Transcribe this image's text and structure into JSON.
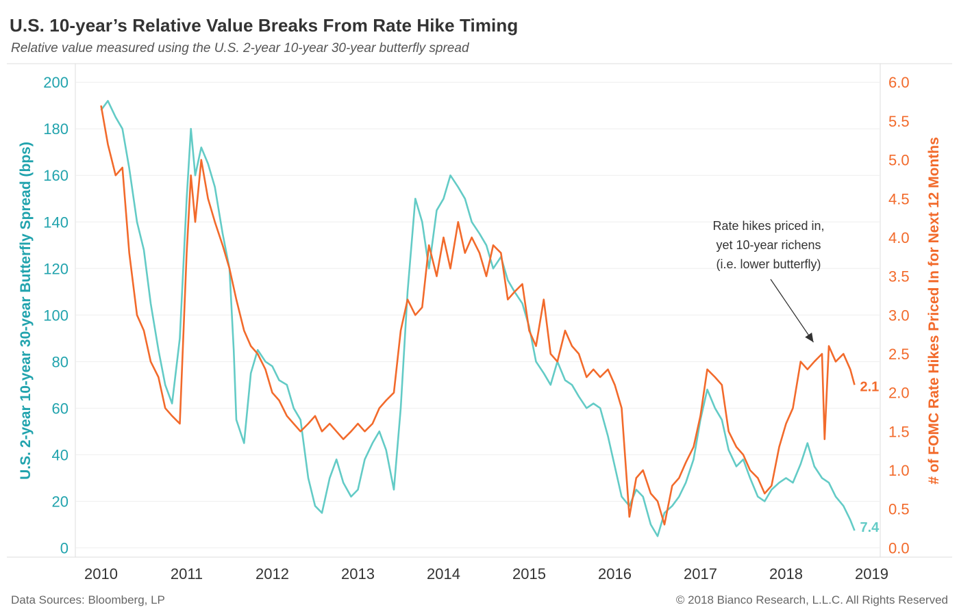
{
  "header": {
    "title": "U.S. 10-year’s Relative Value Breaks From Rate Hike Timing",
    "subtitle": "Relative value measured using the U.S. 2-year 10-year 30-year butterfly spread"
  },
  "footer": {
    "source": "Data Sources: Bloomberg, LP",
    "copyright": "© 2018 Bianco Research, L.L.C. All Rights Reserved"
  },
  "chart_data": {
    "type": "line",
    "title": "U.S. 10-year’s Relative Value Breaks From Rate Hike Timing",
    "subtitle": "Relative value measured using the U.S. 2-year 10-year 30-year butterfly spread",
    "xlabel": "",
    "ylabel": "U.S. 2-year 10-year 30-year Butterfly Spread (bps)",
    "y2label": "# of FOMC Rate Hikes Priced In for Next 12 Months",
    "xlim": [
      2009.7,
      2019.1
    ],
    "ylim": [
      -4,
      208
    ],
    "y2lim": [
      -0.12,
      6.24
    ],
    "x_ticks": [
      "2010",
      "2011",
      "2012",
      "2013",
      "2014",
      "2015",
      "2016",
      "2017",
      "2018",
      "2019"
    ],
    "y_ticks": [
      "0",
      "20",
      "40",
      "60",
      "80",
      "100",
      "120",
      "140",
      "160",
      "180",
      "200"
    ],
    "y2_ticks": [
      "0.0",
      "0.5",
      "1.0",
      "1.5",
      "2.0",
      "2.5",
      "3.0",
      "3.5",
      "4.0",
      "4.5",
      "5.0",
      "5.5",
      "6.0"
    ],
    "grid": true,
    "legend": "none",
    "series": [
      {
        "axis": "left",
        "color": "#63cbc6",
        "last_label": "7.4",
        "x": [
          2010.0,
          2010.08,
          2010.17,
          2010.25,
          2010.33,
          2010.42,
          2010.5,
          2010.58,
          2010.67,
          2010.75,
          2010.83,
          2010.92,
          2011.0,
          2011.05,
          2011.1,
          2011.17,
          2011.25,
          2011.33,
          2011.42,
          2011.5,
          2011.55,
          2011.58,
          2011.67,
          2011.75,
          2011.83,
          2011.92,
          2012.0,
          2012.08,
          2012.17,
          2012.25,
          2012.33,
          2012.42,
          2012.5,
          2012.58,
          2012.67,
          2012.75,
          2012.83,
          2012.92,
          2013.0,
          2013.08,
          2013.17,
          2013.25,
          2013.33,
          2013.42,
          2013.5,
          2013.58,
          2013.67,
          2013.75,
          2013.83,
          2013.92,
          2014.0,
          2014.08,
          2014.17,
          2014.25,
          2014.33,
          2014.42,
          2014.5,
          2014.58,
          2014.67,
          2014.75,
          2014.83,
          2014.92,
          2015.0,
          2015.08,
          2015.17,
          2015.25,
          2015.33,
          2015.42,
          2015.5,
          2015.58,
          2015.67,
          2015.75,
          2015.83,
          2015.92,
          2016.0,
          2016.08,
          2016.17,
          2016.25,
          2016.33,
          2016.42,
          2016.5,
          2016.58,
          2016.67,
          2016.75,
          2016.83,
          2016.92,
          2017.0,
          2017.08,
          2017.17,
          2017.25,
          2017.33,
          2017.42,
          2017.5,
          2017.58,
          2017.67,
          2017.75,
          2017.83,
          2017.92,
          2018.0,
          2018.08,
          2018.17,
          2018.25,
          2018.33,
          2018.42,
          2018.5,
          2018.58,
          2018.67,
          2018.75,
          2018.8
        ],
        "y": [
          188,
          192,
          185,
          180,
          163,
          140,
          128,
          105,
          85,
          70,
          62,
          90,
          150,
          180,
          160,
          172,
          165,
          155,
          135,
          120,
          85,
          55,
          45,
          75,
          85,
          80,
          78,
          72,
          70,
          60,
          55,
          30,
          18,
          15,
          30,
          38,
          28,
          22,
          25,
          38,
          45,
          50,
          42,
          25,
          60,
          110,
          150,
          140,
          120,
          145,
          150,
          160,
          155,
          150,
          140,
          135,
          130,
          120,
          125,
          115,
          110,
          105,
          95,
          80,
          75,
          70,
          80,
          72,
          70,
          65,
          60,
          62,
          60,
          48,
          35,
          22,
          18,
          25,
          22,
          10,
          5,
          15,
          18,
          22,
          28,
          38,
          55,
          68,
          60,
          55,
          42,
          35,
          38,
          30,
          22,
          20,
          25,
          28,
          30,
          28,
          36,
          45,
          35,
          30,
          28,
          22,
          18,
          12,
          7.4
        ]
      },
      {
        "axis": "right",
        "color": "#f26a2b",
        "last_label": "2.1",
        "x": [
          2010.0,
          2010.08,
          2010.17,
          2010.25,
          2010.33,
          2010.42,
          2010.5,
          2010.58,
          2010.67,
          2010.75,
          2010.83,
          2010.92,
          2011.0,
          2011.05,
          2011.1,
          2011.17,
          2011.25,
          2011.33,
          2011.42,
          2011.5,
          2011.58,
          2011.67,
          2011.75,
          2011.83,
          2011.92,
          2012.0,
          2012.08,
          2012.17,
          2012.25,
          2012.33,
          2012.42,
          2012.5,
          2012.58,
          2012.67,
          2012.75,
          2012.83,
          2012.92,
          2013.0,
          2013.08,
          2013.17,
          2013.25,
          2013.33,
          2013.42,
          2013.5,
          2013.58,
          2013.67,
          2013.75,
          2013.83,
          2013.92,
          2014.0,
          2014.08,
          2014.17,
          2014.25,
          2014.33,
          2014.42,
          2014.5,
          2014.58,
          2014.67,
          2014.75,
          2014.83,
          2014.92,
          2015.0,
          2015.08,
          2015.17,
          2015.25,
          2015.33,
          2015.42,
          2015.5,
          2015.58,
          2015.67,
          2015.75,
          2015.83,
          2015.92,
          2016.0,
          2016.08,
          2016.17,
          2016.25,
          2016.33,
          2016.42,
          2016.5,
          2016.58,
          2016.67,
          2016.75,
          2016.83,
          2016.92,
          2017.0,
          2017.08,
          2017.17,
          2017.25,
          2017.33,
          2017.42,
          2017.5,
          2017.58,
          2017.67,
          2017.75,
          2017.83,
          2017.92,
          2018.0,
          2018.08,
          2018.17,
          2018.25,
          2018.33,
          2018.42,
          2018.45,
          2018.5,
          2018.58,
          2018.67,
          2018.75,
          2018.8
        ],
        "y": [
          5.7,
          5.2,
          4.8,
          4.9,
          3.8,
          3.0,
          2.8,
          2.4,
          2.2,
          1.8,
          1.7,
          1.6,
          3.8,
          4.8,
          4.2,
          5.0,
          4.5,
          4.2,
          3.9,
          3.6,
          3.2,
          2.8,
          2.6,
          2.5,
          2.3,
          2.0,
          1.9,
          1.7,
          1.6,
          1.5,
          1.6,
          1.7,
          1.5,
          1.6,
          1.5,
          1.4,
          1.5,
          1.6,
          1.5,
          1.6,
          1.8,
          1.9,
          2.0,
          2.8,
          3.2,
          3.0,
          3.1,
          3.9,
          3.5,
          4.0,
          3.6,
          4.2,
          3.8,
          4.0,
          3.8,
          3.5,
          3.9,
          3.8,
          3.2,
          3.3,
          3.4,
          2.8,
          2.6,
          3.2,
          2.5,
          2.4,
          2.8,
          2.6,
          2.5,
          2.2,
          2.3,
          2.2,
          2.3,
          2.1,
          1.8,
          0.4,
          0.9,
          1.0,
          0.7,
          0.6,
          0.3,
          0.8,
          0.9,
          1.1,
          1.3,
          1.7,
          2.3,
          2.2,
          2.1,
          1.5,
          1.3,
          1.2,
          1.0,
          0.9,
          0.7,
          0.8,
          1.3,
          1.6,
          1.8,
          2.4,
          2.3,
          2.4,
          2.5,
          1.4,
          2.6,
          2.4,
          2.5,
          2.3,
          2.1
        ]
      }
    ],
    "annotation": {
      "lines": [
        "Rate hikes priced in,",
        "yet 10-year richens",
        "(i.e. lower butterfly)"
      ],
      "arrow_to": [
        2018.32,
        2.65
      ]
    }
  },
  "colors": {
    "teal": "#63cbc6",
    "teal_text": "#21a3ad",
    "orange": "#f26a2b",
    "text": "#333333",
    "muted": "#666666",
    "grid": "#eeeeee",
    "axis": "#dddddd"
  }
}
